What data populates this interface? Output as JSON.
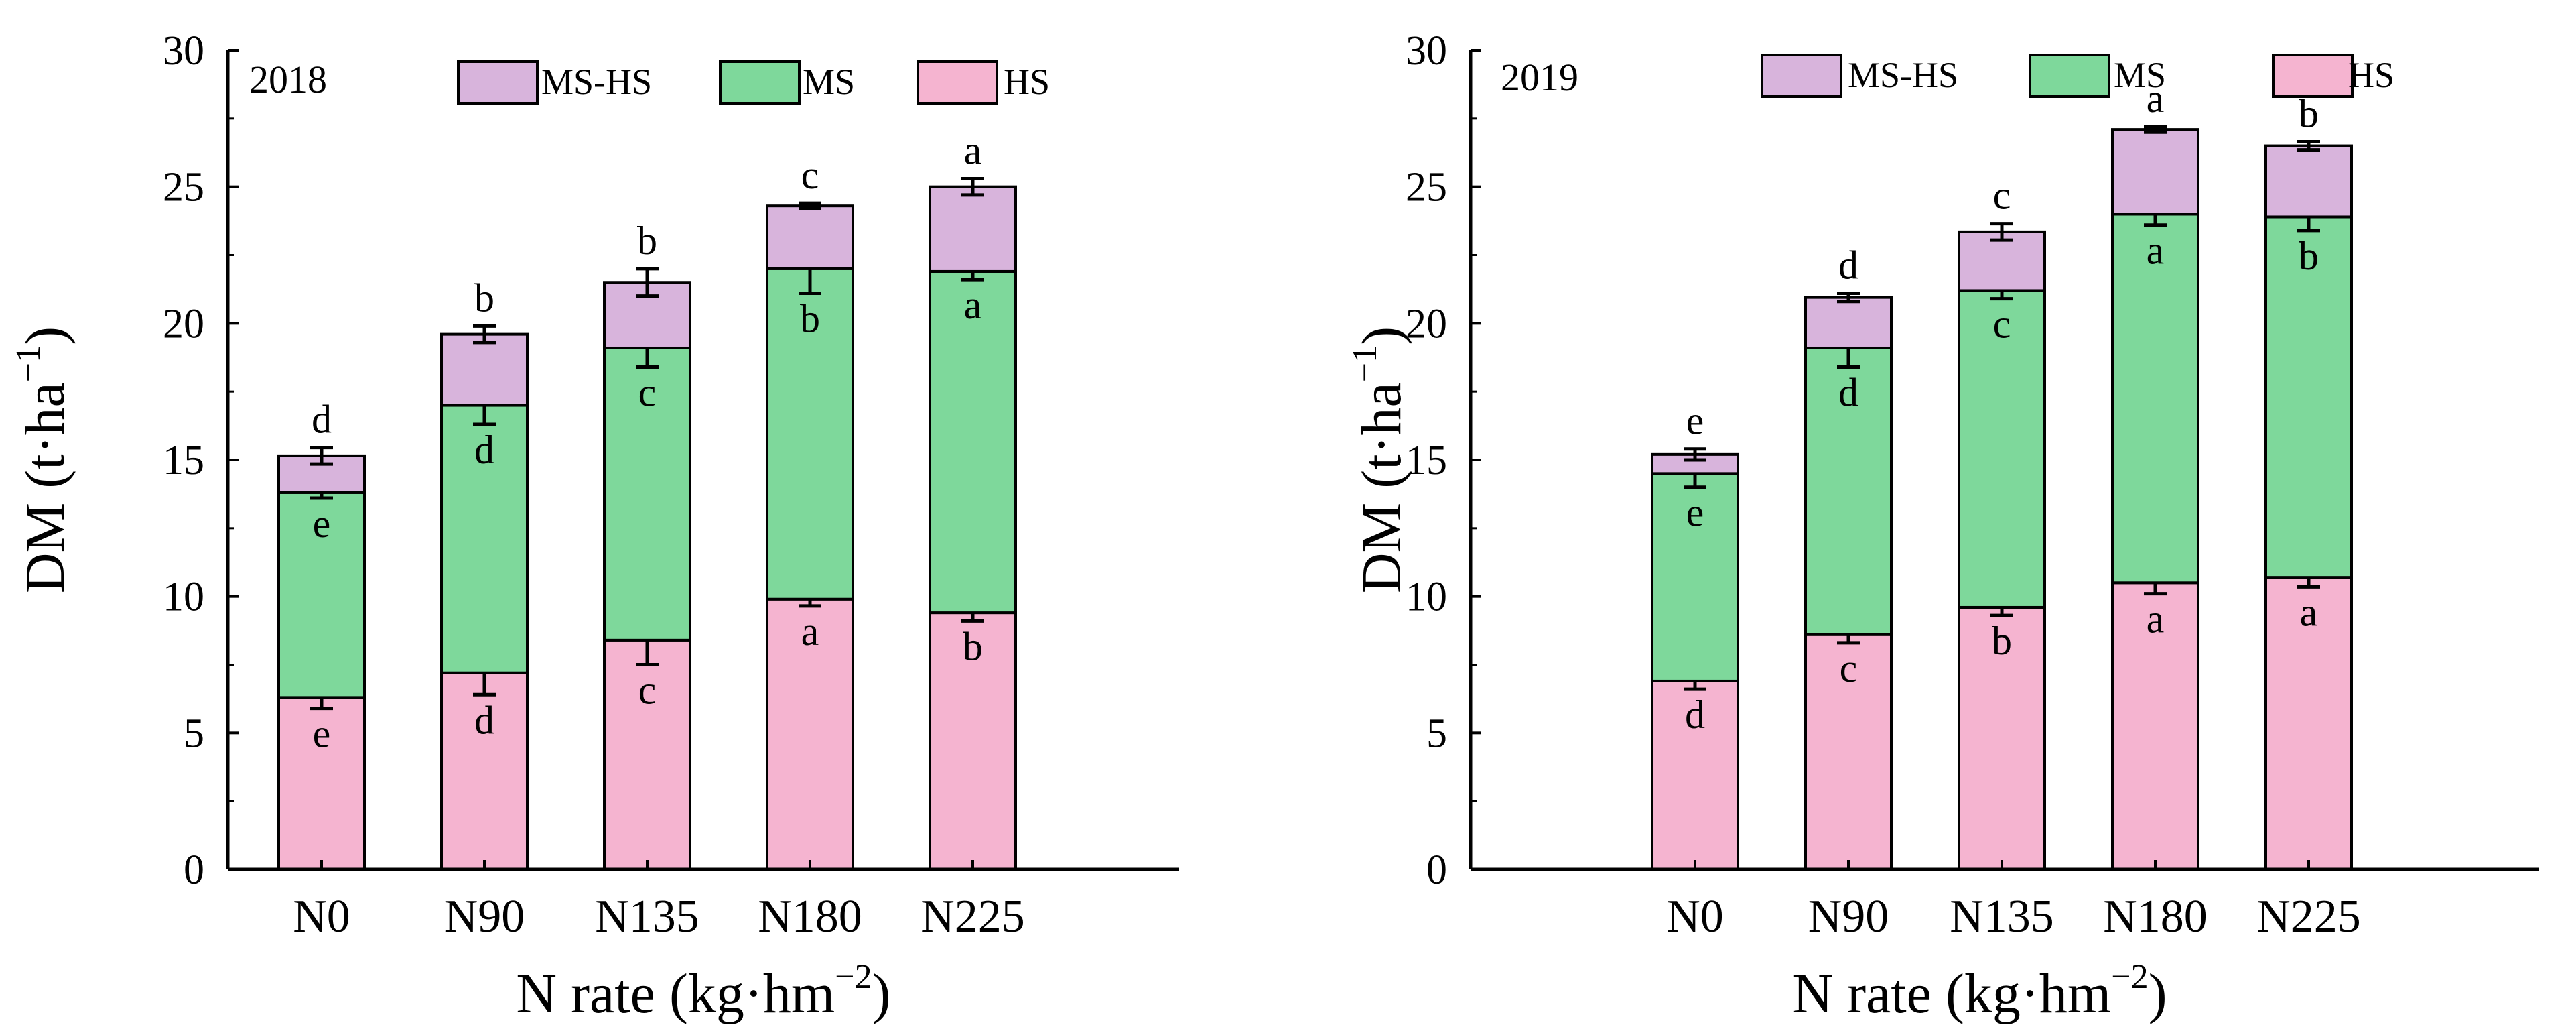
{
  "figure": {
    "description": "Stacked dry matter accumulation by growth stage under N rates, two seasons"
  },
  "chart_data": [
    {
      "type": "bar",
      "stacked": true,
      "panel_label": "2018",
      "categories": [
        "N0",
        "N90",
        "N135",
        "N180",
        "N225"
      ],
      "xlabel": "N rate (kg·hm⁻²)",
      "xlabel_main": "N rate (kg·hm",
      "xlabel_sup": "−2",
      "xlabel_close": ")",
      "ylabel": "DM (t·ha⁻¹)",
      "ylabel_main": "DM (t·ha",
      "ylabel_sup": "−1",
      "ylabel_close": ")",
      "ylim": [
        0,
        30
      ],
      "yticks": [
        "0",
        "5",
        "10",
        "15",
        "20",
        "25",
        "30"
      ],
      "legend": [
        "MS-HS",
        "MS",
        "HS"
      ],
      "legend_position": "top",
      "series": [
        {
          "name": "HS",
          "color": "#f5b4d0",
          "values": [
            6.3,
            7.2,
            8.4,
            9.9,
            9.4
          ],
          "errors": [
            0.4,
            0.8,
            0.9,
            0.25,
            0.3
          ],
          "letters": [
            "e",
            "d",
            "c",
            "a",
            "b"
          ]
        },
        {
          "name": "MS",
          "color": "#7ed89b",
          "values": [
            7.5,
            9.8,
            10.7,
            12.1,
            12.5
          ],
          "errors": [
            0.2,
            0.7,
            0.7,
            0.9,
            0.3
          ],
          "letters": [
            "e",
            "d",
            "c",
            "b",
            "a"
          ]
        },
        {
          "name": "MS-HS",
          "color": "#d8b4dc",
          "values": [
            1.35,
            2.6,
            2.4,
            2.3,
            3.1
          ],
          "errors": [
            0.3,
            0.3,
            0.5,
            0.1,
            0.3
          ],
          "letters": [
            "d",
            "b",
            "b",
            "c",
            "a"
          ]
        }
      ]
    },
    {
      "type": "bar",
      "stacked": true,
      "panel_label": "2019",
      "categories": [
        "N0",
        "N90",
        "N135",
        "N180",
        "N225"
      ],
      "xlabel": "N rate (kg·hm⁻²)",
      "xlabel_main": "N rate (kg·hm",
      "xlabel_sup": "−2",
      "xlabel_close": ")",
      "ylabel": "DM (t·ha⁻¹)",
      "ylabel_main": "DM (t·ha",
      "ylabel_sup": "−1",
      "ylabel_close": ")",
      "ylim": [
        0,
        30
      ],
      "yticks": [
        "0",
        "5",
        "10",
        "15",
        "20",
        "25",
        "30"
      ],
      "legend": [
        "MS-HS",
        "MS",
        "HS"
      ],
      "legend_position": "top",
      "series": [
        {
          "name": "HS",
          "color": "#f5b4d0",
          "values": [
            6.9,
            8.6,
            9.6,
            10.5,
            10.7
          ],
          "errors": [
            0.3,
            0.3,
            0.3,
            0.4,
            0.35
          ],
          "letters": [
            "d",
            "c",
            "b",
            "a",
            "a"
          ]
        },
        {
          "name": "MS",
          "color": "#7ed89b",
          "values": [
            7.6,
            10.5,
            11.6,
            13.5,
            13.2
          ],
          "errors": [
            0.5,
            0.7,
            0.3,
            0.4,
            0.5
          ],
          "letters": [
            "e",
            "d",
            "c",
            "a",
            "b"
          ]
        },
        {
          "name": "MS-HS",
          "color": "#d8b4dc",
          "values": [
            0.7,
            1.85,
            2.15,
            3.1,
            2.6
          ],
          "errors": [
            0.2,
            0.15,
            0.3,
            0.1,
            0.15
          ],
          "letters": [
            "e",
            "d",
            "c",
            "a",
            "b"
          ]
        }
      ]
    }
  ]
}
